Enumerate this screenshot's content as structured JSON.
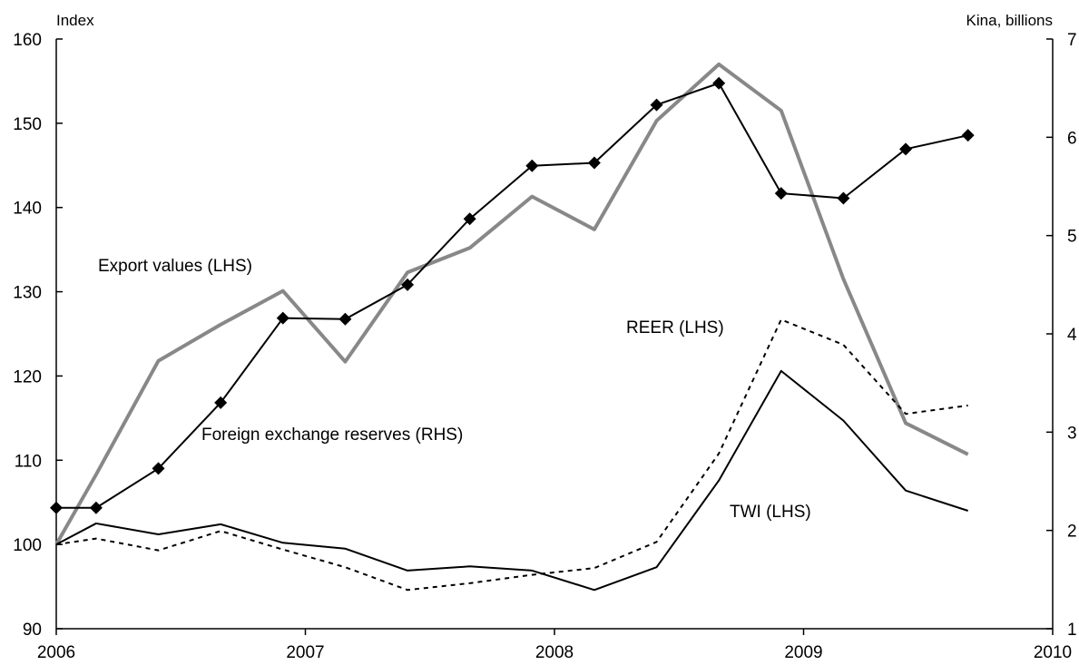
{
  "chart_data": {
    "type": "line",
    "y_label": "Index",
    "y2_label": "Kina, billions",
    "xlim": [
      2006,
      2010
    ],
    "xticks": [
      2006,
      2007,
      2008,
      2009,
      2010
    ],
    "ylim": [
      90,
      160
    ],
    "yticks": [
      90,
      100,
      110,
      120,
      130,
      140,
      150,
      160
    ],
    "y2lim": [
      1,
      7
    ],
    "y2ticks": [
      1,
      2,
      3,
      4,
      5,
      6,
      7
    ],
    "x": [
      2006.0,
      2006.16,
      2006.41,
      2006.66,
      2006.91,
      2007.16,
      2007.41,
      2007.66,
      2007.91,
      2008.16,
      2008.41,
      2008.66,
      2008.91,
      2009.16,
      2009.41,
      2009.66
    ],
    "series": [
      {
        "name": "Export values (LHS)",
        "color": "#888888",
        "style": "solid",
        "width": 4,
        "marker": "none",
        "axis": "y",
        "values": [
          100,
          108.3,
          121.8,
          126.1,
          130.1,
          121.7,
          132.3,
          135.2,
          141.3,
          137.4,
          150.3,
          157.0,
          151.5,
          131.5,
          114.4,
          110.7
        ]
      },
      {
        "name": "Foreign exchange reserves (RHS)",
        "color": "#000000",
        "style": "solid",
        "width": 2,
        "marker": "diamond",
        "axis": "y2",
        "values": [
          2.23,
          2.23,
          2.63,
          3.3,
          4.16,
          4.15,
          4.5,
          5.17,
          5.71,
          5.74,
          6.33,
          6.55,
          5.43,
          5.38,
          5.88,
          6.02
        ]
      },
      {
        "name": "REER (LHS)",
        "color": "#000000",
        "style": "dotted",
        "width": 2,
        "marker": "none",
        "axis": "y",
        "values": [
          100,
          100.7,
          99.3,
          101.6,
          99.4,
          97.3,
          94.6,
          95.4,
          96.4,
          97.2,
          100.3,
          110.8,
          126.7,
          123.7,
          115.5,
          116.5
        ]
      },
      {
        "name": "TWI (LHS)",
        "color": "#000000",
        "style": "solid",
        "width": 2,
        "marker": "none",
        "axis": "y",
        "values": [
          100,
          102.5,
          101.2,
          102.4,
          100.2,
          99.5,
          96.9,
          97.4,
          96.9,
          94.6,
          97.3,
          107.6,
          120.6,
          114.7,
          106.4,
          104.0
        ]
      }
    ]
  }
}
